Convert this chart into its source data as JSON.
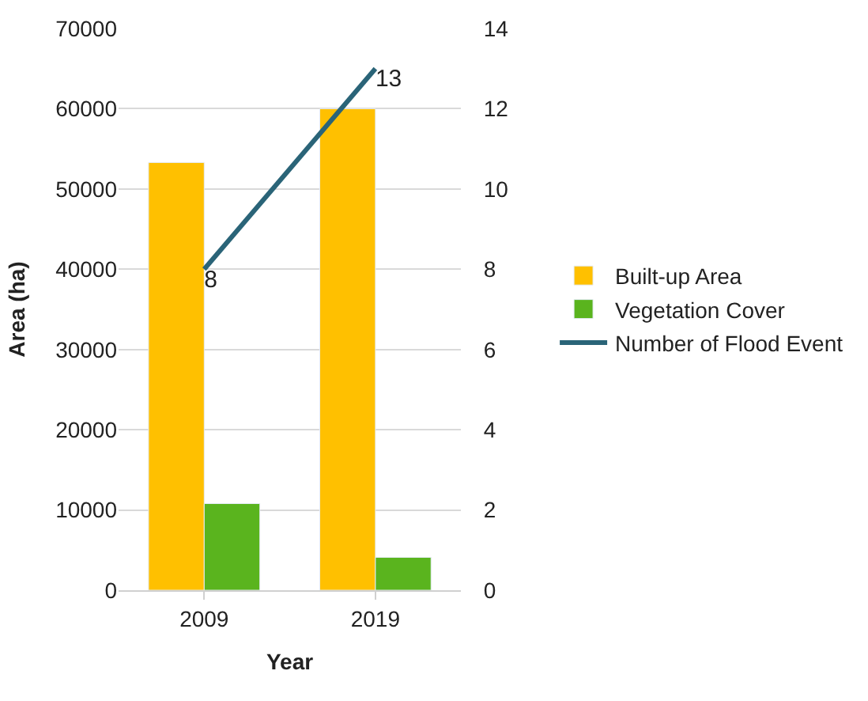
{
  "chart_data": {
    "type": "bar",
    "xlabel": "Year",
    "ylabel": "Area (ha)",
    "categories": [
      "2009",
      "2019"
    ],
    "series": [
      {
        "name": "Built-up Area",
        "color": "#ffc000",
        "values": [
          53300,
          60000
        ]
      },
      {
        "name": "Vegetation Cover",
        "color": "#5ab41e",
        "values": [
          10800,
          4100
        ]
      },
      {
        "name": "Number of Flood Event",
        "type": "line",
        "axis": "y2",
        "color": "#2a6478",
        "values": [
          8,
          13
        ],
        "value_labels": [
          "8",
          "13"
        ]
      }
    ],
    "ylim": [
      0,
      70000
    ],
    "yticks": [
      0,
      10000,
      20000,
      30000,
      40000,
      50000,
      60000,
      70000
    ],
    "y2lim": [
      0,
      14
    ],
    "y2ticks": [
      0,
      2,
      4,
      6,
      8,
      10,
      12,
      14
    ],
    "grid": "y",
    "legend": "right",
    "marker": "none"
  }
}
